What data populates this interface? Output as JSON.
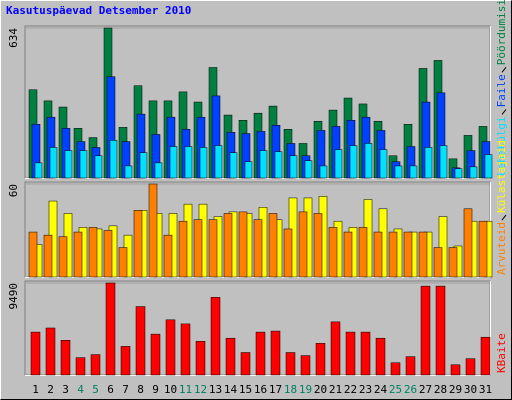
{
  "chart_data": [
    {
      "type": "bar",
      "title": "Kasutuspäevad Detsember 2010",
      "ylim": [
        0,
        634
      ],
      "yticks": [
        634
      ],
      "series": [
        {
          "name": "Pöördumisi",
          "color": "#008040",
          "values": [
            373,
            326,
            300,
            210,
            171,
            634,
            214,
            390,
            326,
            326,
            364,
            321,
            467,
            266,
            244,
            274,
            304,
            206,
            146,
            240,
            287,
            338,
            313,
            240,
            94,
            227,
            463,
            497,
            81,
            180,
            218
          ]
        },
        {
          "name": "Faile",
          "color": "#0040ff",
          "values": [
            227,
            257,
            210,
            154,
            129,
            428,
            154,
            270,
            184,
            257,
            206,
            257,
            347,
            193,
            188,
            197,
            223,
            146,
            94,
            201,
            218,
            244,
            257,
            201,
            69,
            133,
            321,
            360,
            43,
            116,
            154
          ]
        },
        {
          "name": "Lehekülgi",
          "color": "#00e0ff",
          "values": [
            64,
            129,
            116,
            116,
            94,
            159,
            51,
            107,
            64,
            133,
            133,
            129,
            137,
            107,
            69,
            116,
            111,
            94,
            73,
            51,
            120,
            137,
            146,
            120,
            51,
            51,
            129,
            137,
            39,
            47,
            99
          ]
        }
      ]
    },
    {
      "type": "bar",
      "ylim": [
        0,
        60
      ],
      "yticks": [
        60
      ],
      "series": [
        {
          "name": "Külastajaid",
          "color": "#ffff00",
          "values": [
            21,
            49,
            41,
            32,
            31,
            33,
            27,
            43,
            41,
            41,
            47,
            47,
            39,
            42,
            41,
            45,
            37,
            51,
            51,
            52,
            36,
            32,
            50,
            44,
            31,
            29,
            29,
            39,
            20,
            36,
            36
          ]
        },
        {
          "name": "Arvuteid",
          "color": "#ff8000",
          "values": [
            29,
            27,
            26,
            29,
            32,
            30,
            19,
            43,
            60,
            27,
            36,
            37,
            37,
            41,
            42,
            37,
            41,
            31,
            42,
            41,
            32,
            29,
            32,
            29,
            29,
            29,
            29,
            19,
            19,
            44,
            36
          ]
        }
      ]
    },
    {
      "type": "bar",
      "ylim": [
        0,
        9490
      ],
      "yticks": [
        9490
      ],
      "categories": [
        "1",
        "2",
        "3",
        "4",
        "5",
        "6",
        "7",
        "8",
        "9",
        "10",
        "11",
        "12",
        "13",
        "14",
        "15",
        "16",
        "17",
        "18",
        "19",
        "20",
        "21",
        "22",
        "23",
        "24",
        "25",
        "26",
        "27",
        "28",
        "29",
        "30",
        "31"
      ],
      "category_colors": [
        "#000000",
        "#000000",
        "#000000",
        "#008060",
        "#008060",
        "#000000",
        "#000000",
        "#000000",
        "#000000",
        "#000000",
        "#008060",
        "#008060",
        "#000000",
        "#000000",
        "#000000",
        "#000000",
        "#000000",
        "#008060",
        "#008060",
        "#000000",
        "#000000",
        "#000000",
        "#000000",
        "#000000",
        "#008060",
        "#008060",
        "#000000",
        "#000000",
        "#000000",
        "#000000",
        "#000000"
      ],
      "series": [
        {
          "name": "KBaite",
          "color": "#ff0000",
          "values": [
            4427,
            4849,
            3584,
            1792,
            2108,
            9490,
            2951,
            7062,
            4216,
            5692,
            5270,
            3478,
            8011,
            3795,
            2319,
            4427,
            4532,
            2319,
            2003,
            3268,
            5481,
            4427,
            4427,
            3795,
            1265,
            1897,
            9170,
            9170,
            1054,
            1686,
            3900
          ]
        }
      ]
    }
  ]
}
